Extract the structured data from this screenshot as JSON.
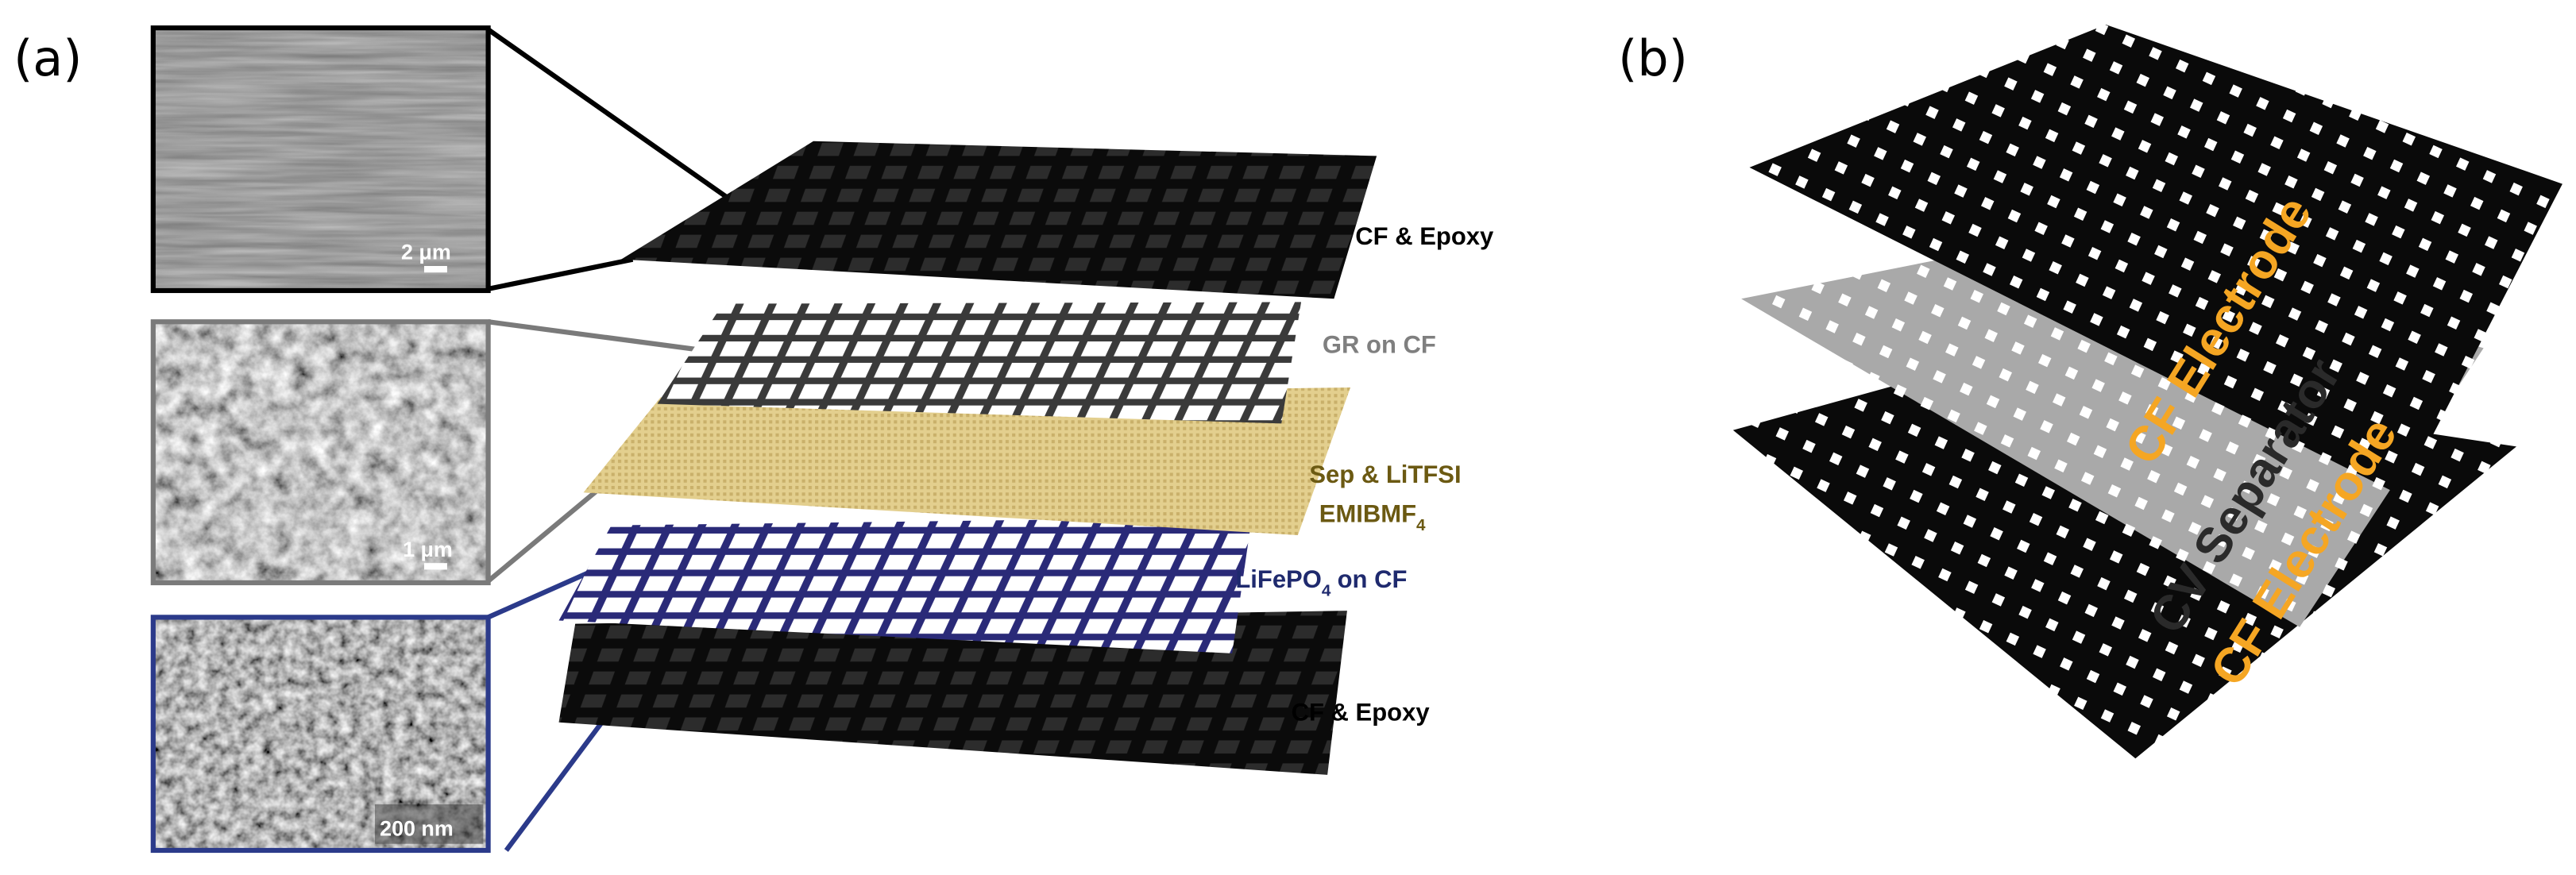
{
  "panel_a": {
    "label": "(a)",
    "insets": [
      {
        "scale_bar": "2 μm"
      },
      {
        "scale_bar": "1 μm"
      },
      {
        "scale_bar": "200 nm"
      }
    ],
    "layers": [
      {
        "label": "CF & Epoxy"
      },
      {
        "label": "GR on CF"
      },
      {
        "label": "Sep & LiTFSI",
        "label_line2": "EMIBMF",
        "label_line2_subscript": "4"
      },
      {
        "label": "LiFePO",
        "label_subscript": "4",
        "label_suffix": "on CF"
      },
      {
        "label": "CF & Epoxy"
      }
    ]
  },
  "panel_b": {
    "label": "(b)",
    "layer_labels": [
      "CF Electrode",
      "CV Separator",
      "CF Electrode"
    ]
  }
}
